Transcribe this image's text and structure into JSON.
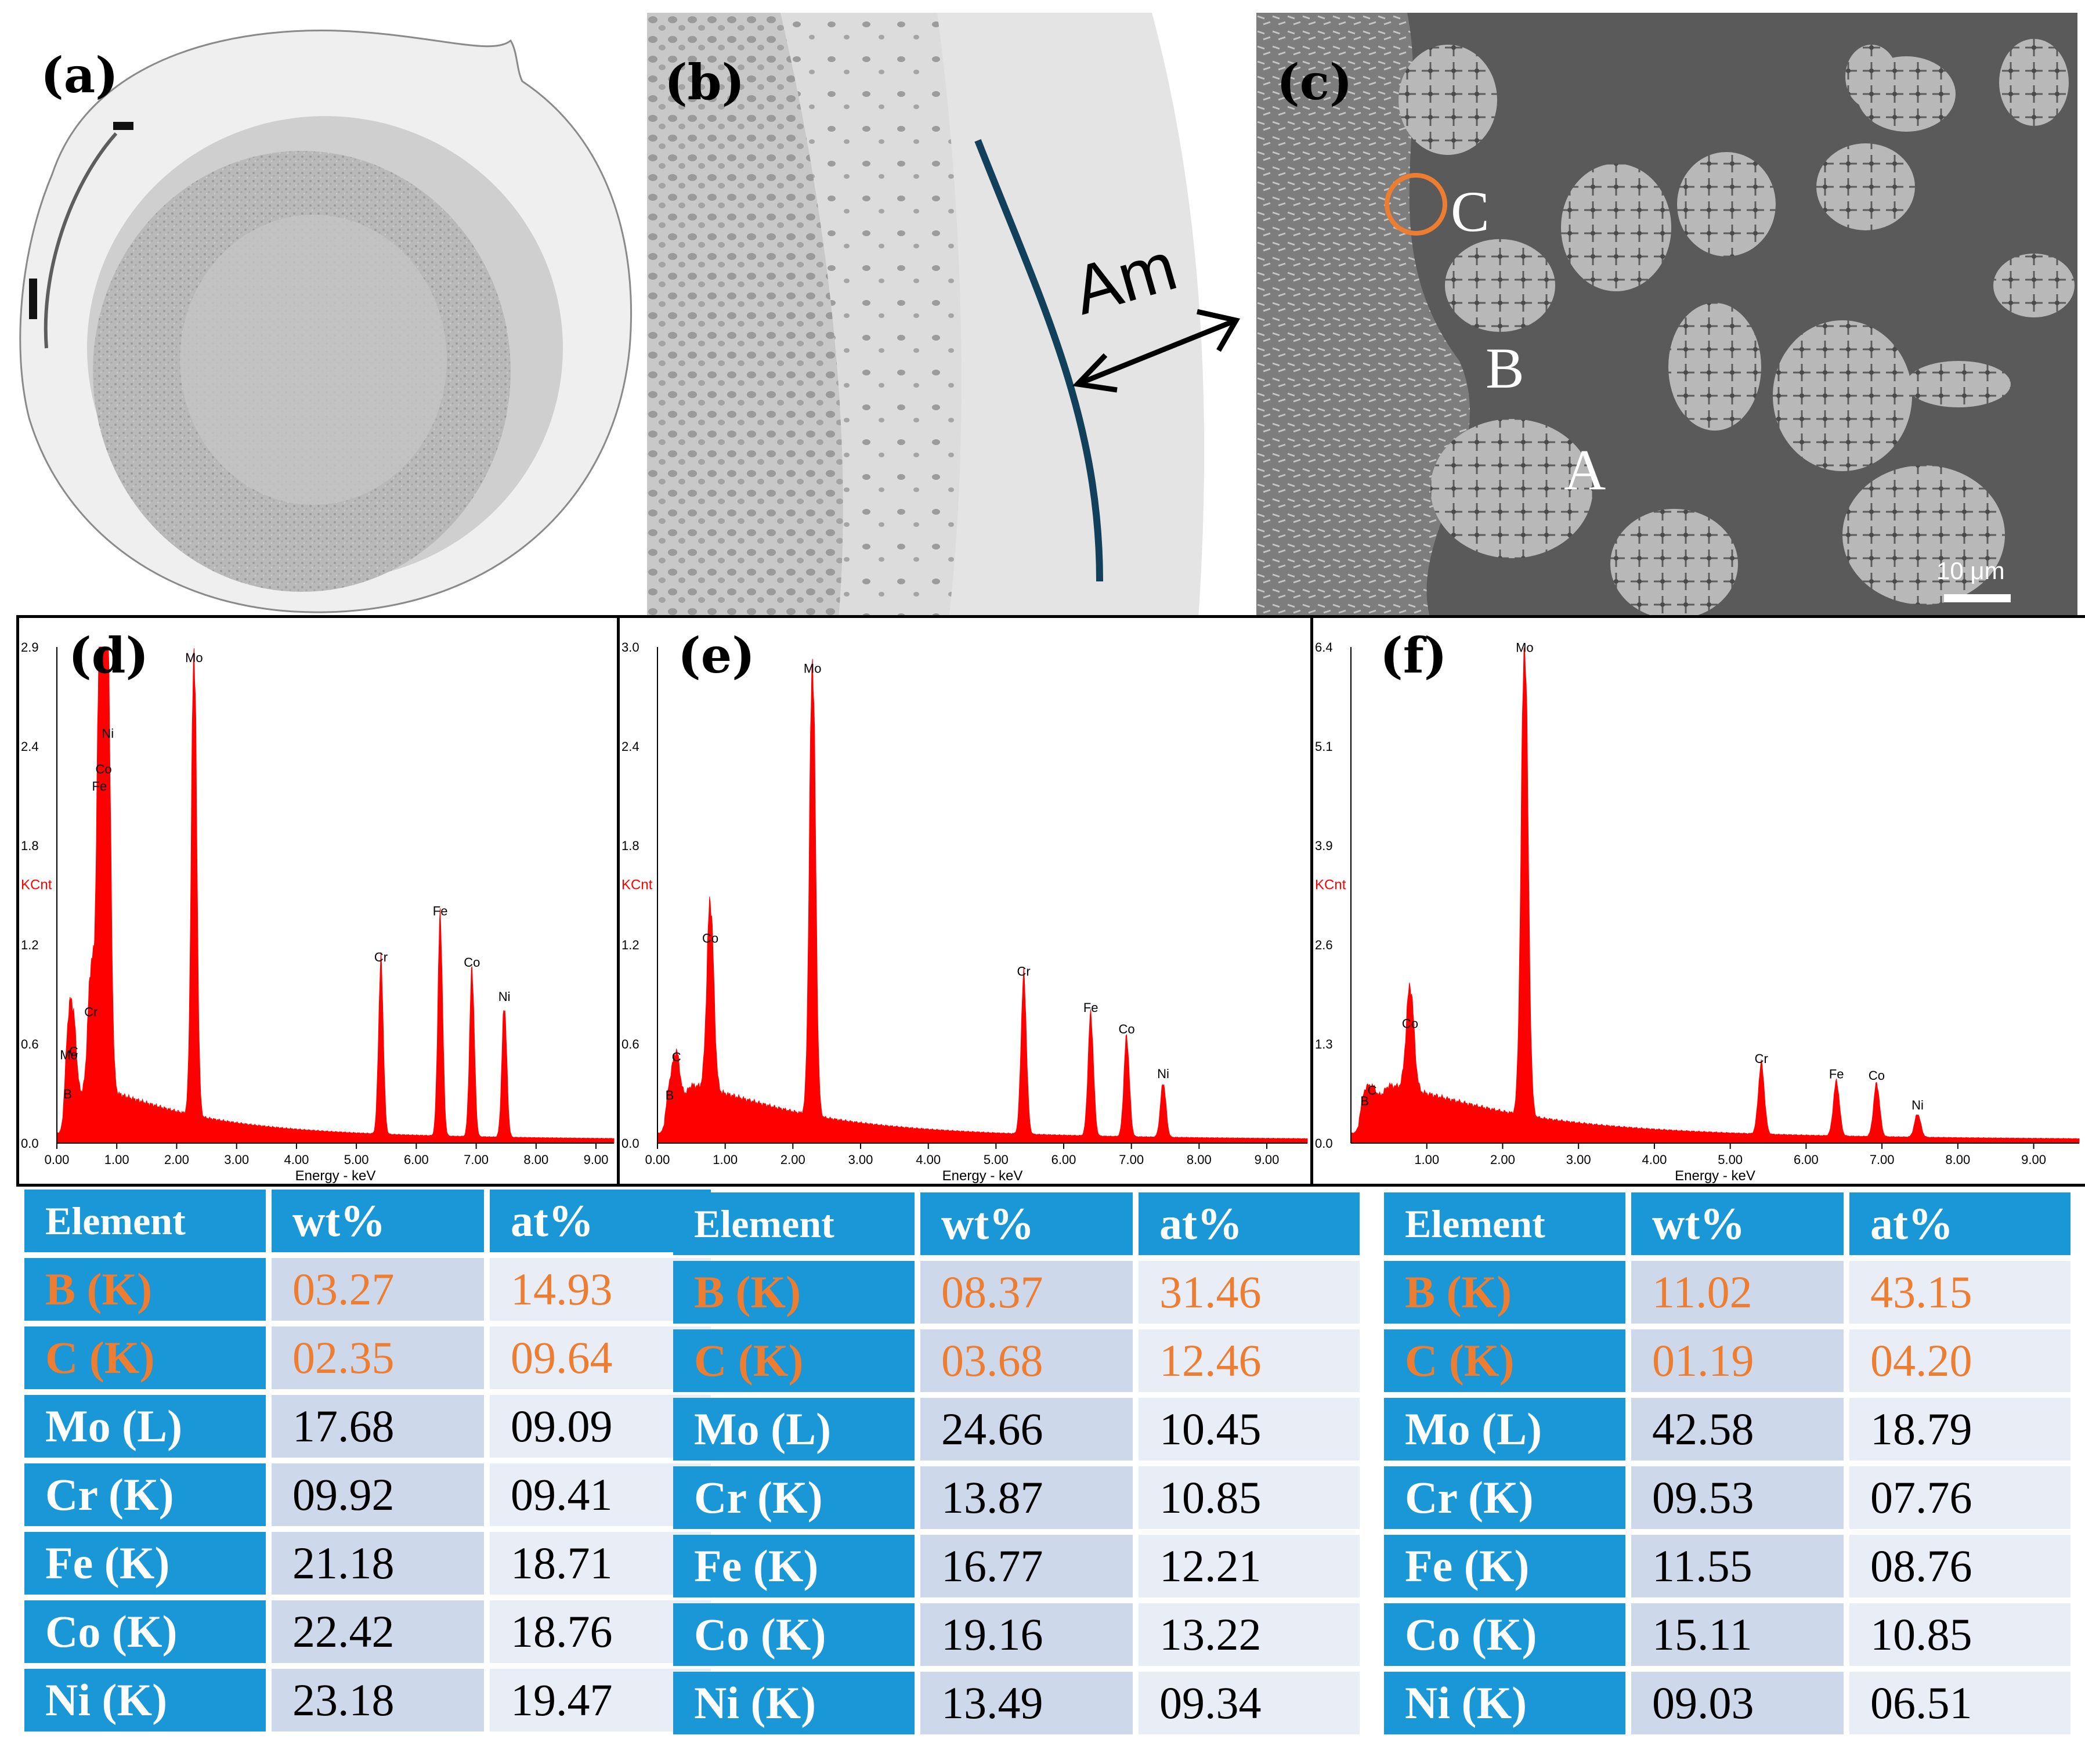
{
  "figure": {
    "panel_labels": [
      "(a)",
      "(b)",
      "(c)",
      "(d)",
      "(e)",
      "(f)"
    ],
    "b_annotation": "Am",
    "c_annotations": {
      "A": "A",
      "B": "B",
      "C": "C"
    },
    "scale_bar": "10 μm",
    "colors": {
      "spectrum": "#ff0000",
      "header_blue": "#1a97d6",
      "row_light": "#cdd9eb",
      "row_lighter": "#e8edf6",
      "light_elements": "#ed7d31",
      "sem_bg": "#5a5a5a"
    }
  },
  "chart_data": [
    {
      "type": "area",
      "panel": "(d)",
      "xlabel": "Energy - keV",
      "ylabel": "KCnt",
      "xlim": [
        0,
        9.3
      ],
      "ylim": [
        0,
        2.9
      ],
      "xticks": [
        "0.00",
        "1.00",
        "2.00",
        "3.00",
        "4.00",
        "5.00",
        "6.00",
        "7.00",
        "8.00",
        "9.00"
      ],
      "yticks": [
        "0.0",
        "0.6",
        "1.2",
        "1.8",
        "2.4",
        "2.9"
      ],
      "peaks": [
        {
          "label": "B",
          "energy": 0.18,
          "height": 0.2
        },
        {
          "label": "C",
          "energy": 0.28,
          "height": 0.45
        },
        {
          "label": "Mo",
          "energy": 0.2,
          "height": 0.32
        },
        {
          "label": "Cr",
          "energy": 0.57,
          "height": 0.68
        },
        {
          "label": "Fe",
          "energy": 0.71,
          "height": 2.0
        },
        {
          "label": "Co",
          "energy": 0.78,
          "height": 2.1
        },
        {
          "label": "Ni",
          "energy": 0.85,
          "height": 2.2
        },
        {
          "label": "Mo",
          "energy": 2.29,
          "height": 2.75
        },
        {
          "label": "Cr",
          "energy": 5.41,
          "height": 1.0
        },
        {
          "label": "Fe",
          "energy": 6.4,
          "height": 1.27
        },
        {
          "label": "Co",
          "energy": 6.93,
          "height": 0.97
        },
        {
          "label": "Ni",
          "energy": 7.47,
          "height": 0.77
        }
      ]
    },
    {
      "type": "area",
      "panel": "(e)",
      "xlabel": "Energy - keV",
      "ylabel": "KCnt",
      "xlim": [
        0,
        9.6
      ],
      "ylim": [
        0,
        3.0
      ],
      "xticks": [
        "0.00",
        "1.00",
        "2.00",
        "3.00",
        "4.00",
        "5.00",
        "6.00",
        "7.00",
        "8.00",
        "9.00"
      ],
      "yticks": [
        "0.0",
        "0.6",
        "1.2",
        "1.8",
        "2.4",
        "3.0"
      ],
      "peaks": [
        {
          "label": "B",
          "energy": 0.18,
          "height": 0.2
        },
        {
          "label": "C",
          "energy": 0.28,
          "height": 0.32
        },
        {
          "label": "Co",
          "energy": 0.78,
          "height": 1.15
        },
        {
          "label": "Mo",
          "energy": 2.29,
          "height": 2.78
        },
        {
          "label": "Cr",
          "energy": 5.41,
          "height": 0.95
        },
        {
          "label": "Fe",
          "energy": 6.4,
          "height": 0.73
        },
        {
          "label": "Co",
          "energy": 6.93,
          "height": 0.6
        },
        {
          "label": "Ni",
          "energy": 7.47,
          "height": 0.33
        }
      ]
    },
    {
      "type": "area",
      "panel": "(f)",
      "xlabel": "Energy - keV",
      "ylabel": "KCnt",
      "xlim": [
        0,
        9.6
      ],
      "ylim": [
        0,
        6.4
      ],
      "xticks": [
        "1.00",
        "2.00",
        "3.00",
        "4.00",
        "5.00",
        "6.00",
        "7.00",
        "8.00",
        "9.00"
      ],
      "yticks": [
        "0.0",
        "1.3",
        "2.6",
        "3.9",
        "5.1",
        "6.4"
      ],
      "peaks": [
        {
          "label": "B",
          "energy": 0.18,
          "height": 0.35
        },
        {
          "label": "C",
          "energy": 0.28,
          "height": 0.25
        },
        {
          "label": "Co",
          "energy": 0.78,
          "height": 1.35
        },
        {
          "label": "Mo",
          "energy": 2.29,
          "height": 6.2
        },
        {
          "label": "Cr",
          "energy": 5.41,
          "height": 0.9
        },
        {
          "label": "Fe",
          "energy": 6.4,
          "height": 0.7
        },
        {
          "label": "Co",
          "energy": 6.93,
          "height": 0.68
        },
        {
          "label": "Ni",
          "energy": 7.47,
          "height": 0.3
        }
      ]
    },
    {
      "type": "table",
      "panel": "(d)",
      "columns": [
        "Element",
        "wt%",
        "at%"
      ],
      "rows": [
        [
          "B (K)",
          "03.27",
          "14.93"
        ],
        [
          "C (K)",
          "02.35",
          "09.64"
        ],
        [
          "Mo (L)",
          "17.68",
          "09.09"
        ],
        [
          "Cr (K)",
          "09.92",
          "09.41"
        ],
        [
          "Fe (K)",
          "21.18",
          "18.71"
        ],
        [
          "Co (K)",
          "22.42",
          "18.76"
        ],
        [
          "Ni (K)",
          "23.18",
          "19.47"
        ]
      ]
    },
    {
      "type": "table",
      "panel": "(e)",
      "columns": [
        "Element",
        "wt%",
        "at%"
      ],
      "rows": [
        [
          "B (K)",
          "08.37",
          "31.46"
        ],
        [
          "C (K)",
          "03.68",
          "12.46"
        ],
        [
          "Mo (L)",
          "24.66",
          "10.45"
        ],
        [
          "Cr (K)",
          "13.87",
          "10.85"
        ],
        [
          "Fe (K)",
          "16.77",
          "12.21"
        ],
        [
          "Co (K)",
          "19.16",
          "13.22"
        ],
        [
          "Ni (K)",
          "13.49",
          "09.34"
        ]
      ]
    },
    {
      "type": "table",
      "panel": "(f)",
      "columns": [
        "Element",
        "wt%",
        "at%"
      ],
      "rows": [
        [
          "B (K)",
          "11.02",
          "43.15"
        ],
        [
          "C (K)",
          "01.19",
          "04.20"
        ],
        [
          "Mo (L)",
          "42.58",
          "18.79"
        ],
        [
          "Cr (K)",
          "09.53",
          "07.76"
        ],
        [
          "Fe (K)",
          "11.55",
          "08.76"
        ],
        [
          "Co (K)",
          "15.11",
          "10.85"
        ],
        [
          "Ni (K)",
          "09.03",
          "06.51"
        ]
      ]
    }
  ]
}
